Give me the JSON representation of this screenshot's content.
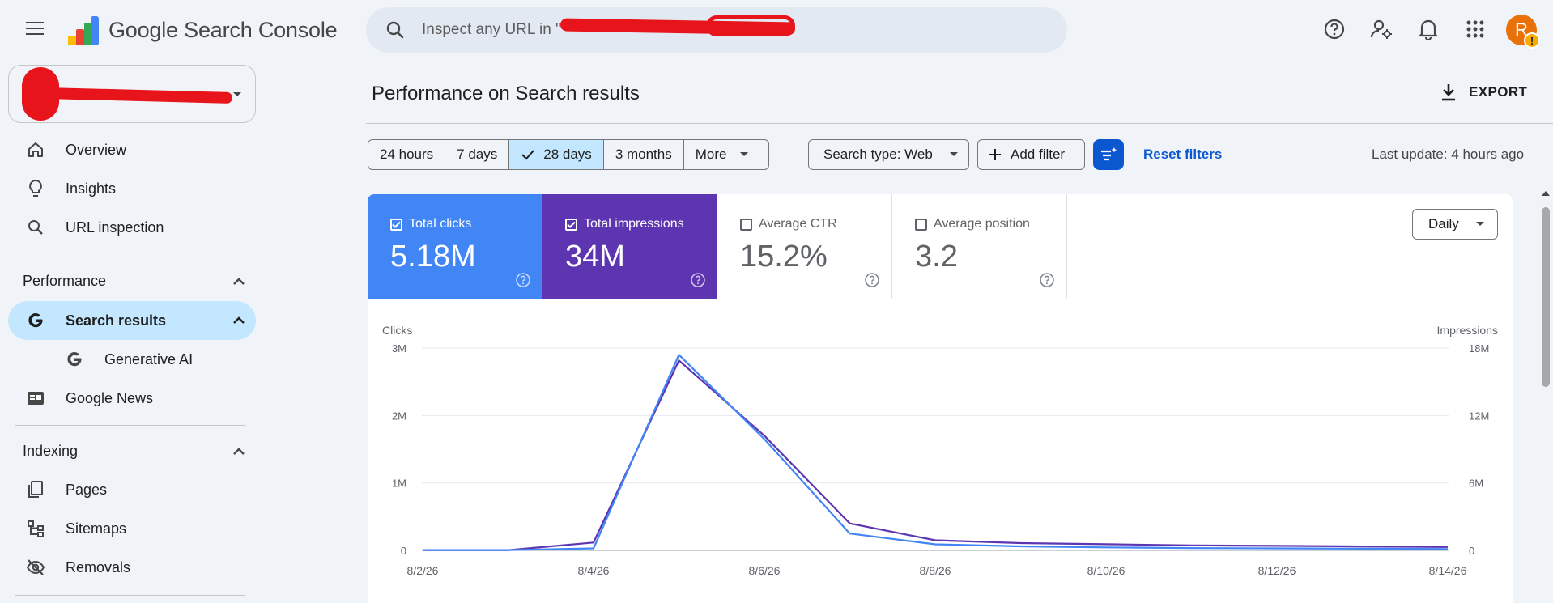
{
  "app": {
    "brand": "Google Search Console"
  },
  "search": {
    "placeholder": "Inspect any URL in \""
  },
  "header": {
    "icons": [
      "help-icon",
      "manage-accounts-icon",
      "notifications-icon",
      "apps-icon"
    ],
    "avatar_letter": "R",
    "avatar_badge": "!"
  },
  "sidebar": {
    "items": [
      {
        "label": "Overview",
        "icon": "home-icon"
      },
      {
        "label": "Insights",
        "icon": "lightbulb-icon"
      },
      {
        "label": "URL inspection",
        "icon": "search-icon"
      }
    ],
    "performance": {
      "title": "Performance",
      "items": [
        {
          "label": "Search results",
          "icon": "google-g-icon",
          "active": true
        },
        {
          "label": "Generative AI",
          "icon": "google-g-icon"
        },
        {
          "label": "Google News",
          "icon": "google-news-icon"
        }
      ]
    },
    "indexing": {
      "title": "Indexing",
      "items": [
        {
          "label": "Pages",
          "icon": "pages-icon"
        },
        {
          "label": "Sitemaps",
          "icon": "sitemap-icon"
        },
        {
          "label": "Removals",
          "icon": "visibility-off-icon"
        }
      ]
    }
  },
  "main": {
    "title": "Performance on Search results",
    "export_label": "EXPORT",
    "date_ranges": [
      "24 hours",
      "7 days",
      "28 days",
      "3 months",
      "More"
    ],
    "selected_range": "28 days",
    "search_type": "Search type: Web",
    "add_filter": "Add filter",
    "reset_filters": "Reset filters",
    "last_update": "Last update: 4 hours ago",
    "granularity": "Daily"
  },
  "metrics": [
    {
      "label": "Total clicks",
      "value": "5.18M",
      "checked": true,
      "color": "#4285f4"
    },
    {
      "label": "Total impressions",
      "value": "34M",
      "checked": true,
      "color": "#5e35b1"
    },
    {
      "label": "Average CTR",
      "value": "15.2%",
      "checked": false
    },
    {
      "label": "Average position",
      "value": "3.2",
      "checked": false
    }
  ],
  "chart_data": {
    "type": "line",
    "left_axis": {
      "label": "Clicks",
      "ticks": [
        "0",
        "1M",
        "2M",
        "3M"
      ],
      "range": [
        0,
        3000000
      ]
    },
    "right_axis": {
      "label": "Impressions",
      "ticks": [
        "0",
        "6M",
        "12M",
        "18M"
      ],
      "range": [
        0,
        18000000
      ]
    },
    "x": [
      "8/2/26",
      "8/3/26",
      "8/4/26",
      "8/5/26",
      "8/6/26",
      "8/7/26",
      "8/8/26",
      "8/9/26",
      "8/10/26",
      "8/11/26",
      "8/12/26",
      "8/13/26",
      "8/14/26"
    ],
    "x_tick_labels": [
      "8/2/26",
      "8/4/26",
      "8/6/26",
      "8/8/26",
      "8/10/26",
      "8/12/26",
      "8/14/26"
    ],
    "series": [
      {
        "name": "Clicks",
        "axis": "left",
        "color": "#4285f4",
        "values": [
          5000,
          5000,
          30000,
          2900000,
          1650000,
          250000,
          90000,
          60000,
          45000,
          35000,
          30000,
          25000,
          20000
        ]
      },
      {
        "name": "Impressions",
        "axis": "right",
        "color": "#5e35b1",
        "values": [
          20000,
          20000,
          700000,
          16900000,
          10200000,
          2400000,
          900000,
          650000,
          550000,
          450000,
          400000,
          350000,
          300000
        ]
      }
    ]
  }
}
